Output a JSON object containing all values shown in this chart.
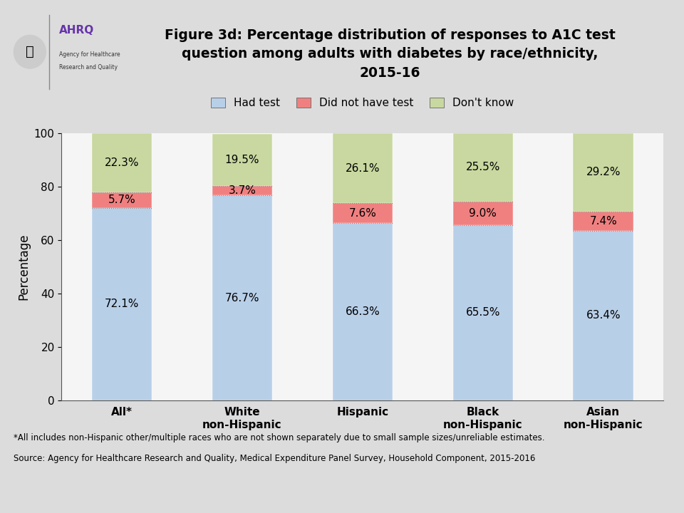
{
  "title_line1": "Figure 3d: Percentage distribution of responses to A1C test",
  "title_line2": "question among adults with diabetes by race/ethnicity,",
  "title_line3": "2015-16",
  "categories": [
    "All*",
    "White\nnon-Hispanic",
    "Hispanic",
    "Black\nnon-Hispanic",
    "Asian\nnon-Hispanic"
  ],
  "had_test": [
    72.1,
    76.7,
    66.3,
    65.5,
    63.4
  ],
  "did_not_have": [
    5.7,
    3.7,
    7.6,
    9.0,
    7.4
  ],
  "dont_know": [
    22.3,
    19.5,
    26.1,
    25.5,
    29.2
  ],
  "color_had": "#b8cfe8",
  "color_did_not": "#f08080",
  "color_dont": "#c8d8a0",
  "ylabel": "Percentage",
  "ylim": [
    0,
    100
  ],
  "yticks": [
    0,
    20,
    40,
    60,
    80,
    100
  ],
  "legend_labels": [
    "Had test",
    "Did not have test",
    "Don't know"
  ],
  "footnote1": "*All includes non-Hispanic other/multiple races who are not shown separately due to small sample sizes/unreliable estimates.",
  "footnote2": "Source: Agency for Healthcare Research and Quality, Medical Expenditure Panel Survey, Household Component, 2015-2016",
  "bar_width": 0.5,
  "bg_header": "#dcdcdc",
  "bg_chart": "#f5f5f5",
  "separator_color": "#aaaaaa"
}
